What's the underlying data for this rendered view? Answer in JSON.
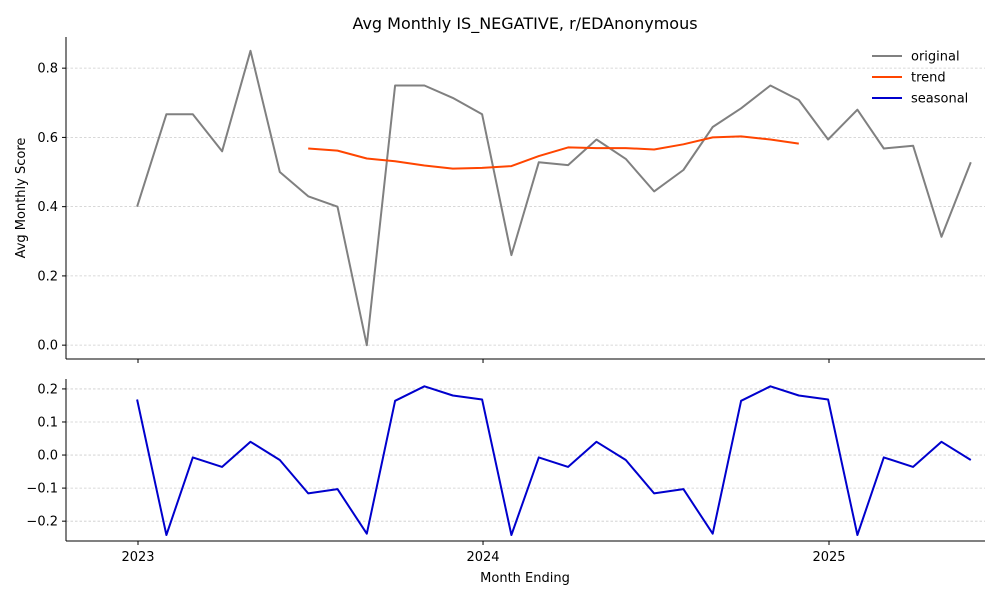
{
  "chart_data": [
    {
      "type": "line",
      "title": "Avg Monthly IS_NEGATIVE, r/EDAnonymous",
      "xlabel": "",
      "ylabel": "Avg Monthly Score",
      "ylim": [
        -0.04,
        0.89
      ],
      "yticks": [
        0.0,
        0.2,
        0.4,
        0.6,
        0.8
      ],
      "grid": "y",
      "legend_placement": "top-right",
      "series": [
        {
          "name": "original",
          "color": "#808080",
          "x": [
            "2022-12-31",
            "2023-01-31",
            "2023-02-28",
            "2023-03-31",
            "2023-04-30",
            "2023-05-31",
            "2023-06-30",
            "2023-07-31",
            "2023-08-31",
            "2023-09-30",
            "2023-10-31",
            "2023-11-30",
            "2023-12-31",
            "2024-01-31",
            "2024-02-29",
            "2024-03-31",
            "2024-04-30",
            "2024-05-31",
            "2024-06-30",
            "2024-07-31",
            "2024-08-31",
            "2024-09-30",
            "2024-10-31",
            "2024-11-30",
            "2024-12-31",
            "2025-01-31",
            "2025-02-28",
            "2025-03-31",
            "2025-04-30",
            "2025-05-31"
          ],
          "values": [
            0.4,
            0.667,
            0.667,
            0.56,
            0.85,
            0.5,
            0.43,
            0.4,
            0.0,
            0.75,
            0.75,
            0.714,
            0.667,
            0.26,
            0.528,
            0.52,
            0.594,
            0.538,
            0.444,
            0.506,
            0.63,
            0.684,
            0.75,
            0.708,
            0.594,
            0.68,
            0.568,
            0.576,
            0.313,
            0.528
          ]
        },
        {
          "name": "trend",
          "color": "#ff4500",
          "x": [
            "2023-06-30",
            "2023-07-31",
            "2023-08-31",
            "2023-09-30",
            "2023-10-31",
            "2023-11-30",
            "2023-12-31",
            "2024-01-31",
            "2024-02-29",
            "2024-03-31",
            "2024-04-30",
            "2024-05-31",
            "2024-06-30",
            "2024-07-31",
            "2024-08-31",
            "2024-09-30",
            "2024-10-31",
            "2024-11-30"
          ],
          "values": [
            0.568,
            0.562,
            0.539,
            0.531,
            0.519,
            0.51,
            0.512,
            0.517,
            0.546,
            0.571,
            0.569,
            0.569,
            0.565,
            0.58,
            0.6,
            0.603,
            0.594,
            0.582
          ]
        }
      ]
    },
    {
      "type": "line",
      "title": "",
      "xlabel": "Month Ending",
      "ylabel": "",
      "ylim": [
        -0.26,
        0.23
      ],
      "yticks": [
        -0.2,
        -0.1,
        0.0,
        0.1,
        0.2
      ],
      "xticks": [
        "2023",
        "2024",
        "2025"
      ],
      "xtick_dates": [
        "2023-01-01",
        "2024-01-01",
        "2025-01-01"
      ],
      "grid": "y",
      "series": [
        {
          "name": "seasonal",
          "color": "#0000cd",
          "x": [
            "2022-12-31",
            "2023-01-31",
            "2023-02-28",
            "2023-03-31",
            "2023-04-30",
            "2023-05-31",
            "2023-06-30",
            "2023-07-31",
            "2023-08-31",
            "2023-09-30",
            "2023-10-31",
            "2023-11-30",
            "2023-12-31",
            "2024-01-31",
            "2024-02-29",
            "2024-03-31",
            "2024-04-30",
            "2024-05-31",
            "2024-06-30",
            "2024-07-31",
            "2024-08-31",
            "2024-09-30",
            "2024-10-31",
            "2024-11-30",
            "2024-12-31",
            "2025-01-31",
            "2025-02-28",
            "2025-03-31",
            "2025-04-30",
            "2025-05-31"
          ],
          "values": [
            0.168,
            -0.242,
            -0.007,
            -0.036,
            0.04,
            -0.015,
            -0.116,
            -0.103,
            -0.238,
            0.164,
            0.208,
            0.18,
            0.168,
            -0.242,
            -0.007,
            -0.036,
            0.04,
            -0.015,
            -0.116,
            -0.103,
            -0.238,
            0.164,
            0.208,
            0.18,
            0.168,
            -0.242,
            -0.007,
            -0.036,
            0.04,
            -0.015
          ]
        }
      ]
    }
  ]
}
